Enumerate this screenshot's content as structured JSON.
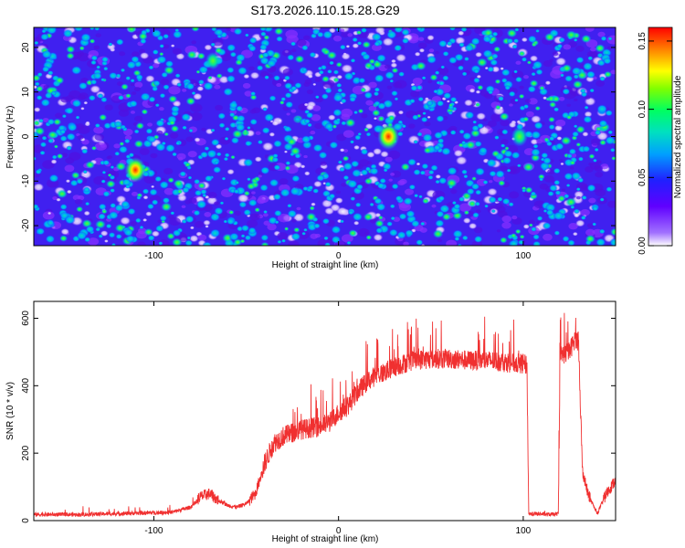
{
  "title": "S173.2026.110.15.28.G29",
  "chart_data": [
    {
      "type": "heatmap",
      "xlabel": "Height of straight line (km)",
      "ylabel": "Frequency (Hz)",
      "xlim": [
        -165,
        150
      ],
      "ylim": [
        -24.5,
        24.5
      ],
      "xticks": [
        -100,
        0,
        100
      ],
      "yticks": [
        -20,
        -10,
        0,
        10,
        20
      ],
      "colorbar": {
        "label": "Normalized spectral amplitude",
        "range": [
          0,
          0.16
        ],
        "ticks": [
          "0.00",
          "0.05",
          "0.10",
          "0.15"
        ],
        "colors": [
          "#ffffff",
          "#8000ff",
          "#2020ff",
          "#00c0ff",
          "#00ff80",
          "#80ff00",
          "#ffff00",
          "#ff8000",
          "#ff0000"
        ]
      },
      "hotspots": [
        {
          "x": 27,
          "y": 0,
          "value": 0.16
        },
        {
          "x": -110,
          "y": -7.5,
          "value": 0.15
        },
        {
          "x": 98,
          "y": 0,
          "value": 0.1
        },
        {
          "x": -68,
          "y": 17,
          "value": 0.08
        }
      ]
    },
    {
      "type": "line",
      "xlabel": "Height of straight line (km)",
      "ylabel": "SNR (10 * v/v)",
      "xlim": [
        -165,
        150
      ],
      "ylim": [
        0,
        650
      ],
      "xticks": [
        -100,
        0,
        100
      ],
      "yticks": [
        0,
        200,
        400,
        600
      ],
      "series": [
        {
          "color": "#f03030",
          "x": [
            -165,
            -140,
            -110,
            -90,
            -80,
            -75,
            -70,
            -65,
            -60,
            -55,
            -50,
            -45,
            -40,
            -35,
            -30,
            -25,
            -20,
            -15,
            -10,
            -5,
            0,
            5,
            10,
            15,
            20,
            25,
            30,
            35,
            40,
            50,
            60,
            70,
            80,
            90,
            100,
            102,
            103,
            108,
            115,
            119,
            120,
            125,
            128,
            130,
            132,
            135,
            140,
            145,
            150
          ],
          "y": [
            18,
            18,
            22,
            25,
            40,
            70,
            80,
            60,
            45,
            40,
            50,
            80,
            170,
            230,
            250,
            260,
            270,
            275,
            280,
            290,
            320,
            340,
            380,
            410,
            430,
            440,
            455,
            465,
            475,
            480,
            480,
            475,
            475,
            470,
            465,
            460,
            20,
            20,
            18,
            20,
            490,
            500,
            540,
            530,
            150,
            80,
            20,
            80,
            120
          ]
        }
      ]
    }
  ]
}
